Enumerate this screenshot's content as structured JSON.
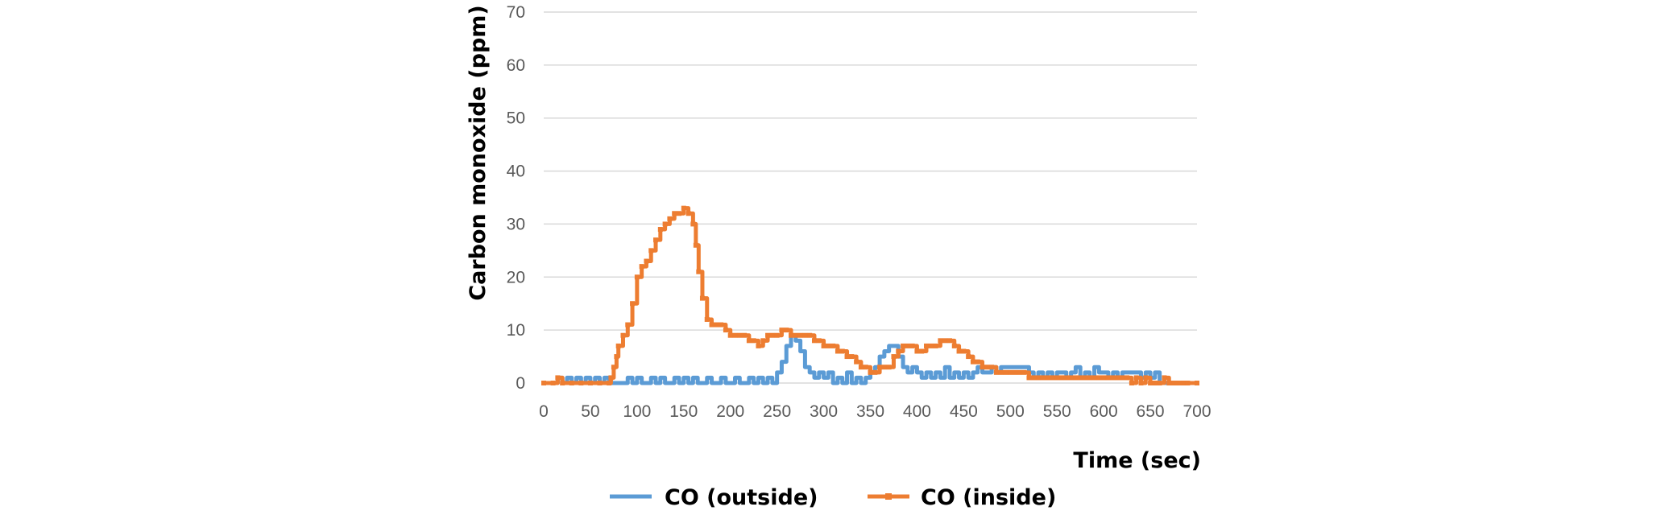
{
  "chart_data": {
    "type": "line",
    "xlabel": "Time (sec)",
    "ylabel": "Carbon monoxide (ppm)",
    "xlim": [
      0,
      700
    ],
    "ylim": [
      0,
      70
    ],
    "xticks": [
      0,
      50,
      100,
      150,
      200,
      250,
      300,
      350,
      400,
      450,
      500,
      550,
      600,
      650,
      700
    ],
    "yticks": [
      0,
      10,
      20,
      30,
      40,
      50,
      60,
      70
    ],
    "grid": "horizontal",
    "legend_position": "bottom",
    "series": [
      {
        "name": "CO (outside)",
        "color": "#5b9bd5",
        "x": [
          0,
          10,
          15,
          20,
          25,
          30,
          35,
          40,
          45,
          50,
          55,
          60,
          65,
          70,
          75,
          80,
          85,
          90,
          95,
          100,
          105,
          110,
          115,
          120,
          125,
          130,
          135,
          140,
          145,
          150,
          155,
          160,
          165,
          170,
          175,
          180,
          185,
          190,
          195,
          200,
          205,
          210,
          215,
          220,
          225,
          230,
          235,
          240,
          245,
          250,
          255,
          260,
          265,
          270,
          275,
          280,
          285,
          290,
          295,
          300,
          305,
          310,
          315,
          320,
          325,
          330,
          335,
          340,
          345,
          350,
          355,
          360,
          365,
          370,
          375,
          380,
          385,
          390,
          395,
          400,
          405,
          410,
          415,
          420,
          425,
          430,
          435,
          440,
          445,
          450,
          455,
          460,
          465,
          470,
          475,
          480,
          485,
          490,
          495,
          500,
          505,
          510,
          515,
          520,
          525,
          530,
          535,
          540,
          545,
          550,
          555,
          560,
          565,
          570,
          575,
          580,
          585,
          590,
          595,
          600,
          605,
          610,
          615,
          620,
          625,
          630,
          635,
          640,
          645,
          650,
          655,
          660,
          665,
          670,
          680,
          690,
          700
        ],
        "y": [
          0,
          0,
          1,
          0,
          1,
          0,
          1,
          0,
          1,
          0,
          1,
          0,
          1,
          0,
          0,
          0,
          0,
          1,
          0,
          1,
          0,
          0,
          1,
          0,
          1,
          0,
          0,
          1,
          0,
          1,
          0,
          1,
          0,
          0,
          1,
          0,
          0,
          1,
          0,
          0,
          1,
          0,
          0,
          1,
          0,
          1,
          0,
          1,
          0,
          2,
          4,
          7,
          9,
          8,
          6,
          3,
          2,
          1,
          2,
          1,
          2,
          0,
          1,
          0,
          2,
          0,
          1,
          0,
          1,
          2,
          3,
          5,
          6,
          7,
          7,
          5,
          3,
          2,
          3,
          2,
          1,
          2,
          1,
          2,
          1,
          3,
          1,
          2,
          1,
          2,
          1,
          2,
          3,
          2,
          2,
          3,
          2,
          3,
          3,
          3,
          3,
          3,
          3,
          2,
          1,
          2,
          1,
          2,
          1,
          2,
          2,
          1,
          2,
          3,
          1,
          2,
          1,
          3,
          2,
          2,
          1,
          2,
          1,
          2,
          2,
          2,
          2,
          1,
          2,
          1,
          2,
          0,
          0,
          0,
          0,
          0,
          0
        ]
      },
      {
        "name": "CO (inside)",
        "color": "#ed7d31",
        "x": [
          0,
          10,
          15,
          20,
          30,
          40,
          50,
          60,
          70,
          72,
          75,
          78,
          80,
          85,
          90,
          95,
          100,
          105,
          110,
          115,
          120,
          125,
          130,
          135,
          140,
          145,
          150,
          155,
          160,
          163,
          166,
          170,
          175,
          180,
          185,
          190,
          195,
          200,
          205,
          210,
          215,
          220,
          225,
          230,
          235,
          240,
          245,
          250,
          255,
          260,
          265,
          270,
          275,
          280,
          285,
          290,
          295,
          300,
          305,
          310,
          315,
          320,
          325,
          330,
          335,
          340,
          345,
          350,
          355,
          360,
          365,
          370,
          375,
          380,
          385,
          390,
          395,
          400,
          405,
          410,
          415,
          420,
          425,
          430,
          435,
          440,
          445,
          450,
          455,
          460,
          465,
          470,
          475,
          480,
          485,
          490,
          495,
          500,
          505,
          510,
          515,
          520,
          525,
          530,
          535,
          540,
          545,
          550,
          555,
          560,
          565,
          570,
          575,
          580,
          585,
          590,
          595,
          600,
          605,
          610,
          615,
          620,
          625,
          630,
          635,
          640,
          645,
          650,
          655,
          660,
          665,
          670,
          675,
          680,
          685,
          690,
          700
        ],
        "y": [
          0,
          0,
          1,
          0,
          0,
          0,
          0,
          0,
          0,
          1,
          3,
          5,
          7,
          9,
          11,
          15,
          20,
          22,
          23,
          25,
          27,
          29,
          30,
          31,
          32,
          32,
          33,
          32,
          30,
          26,
          21,
          16,
          12,
          11,
          11,
          11,
          10,
          9,
          9,
          9,
          9,
          8,
          8,
          7,
          8,
          9,
          9,
          9,
          10,
          10,
          9,
          9,
          9,
          9,
          9,
          8,
          8,
          7,
          7,
          7,
          6,
          6,
          5,
          5,
          4,
          3,
          3,
          2,
          2,
          3,
          3,
          3,
          5,
          6,
          7,
          7,
          7,
          6,
          6,
          7,
          7,
          7,
          8,
          8,
          8,
          7,
          6,
          6,
          5,
          4,
          4,
          3,
          3,
          3,
          2,
          2,
          2,
          2,
          2,
          2,
          2,
          1,
          1,
          1,
          1,
          1,
          1,
          1,
          1,
          1,
          1,
          1,
          1,
          1,
          1,
          1,
          1,
          1,
          1,
          1,
          1,
          1,
          1,
          0,
          1,
          0,
          1,
          0,
          0,
          0,
          1,
          0,
          0,
          0,
          0,
          0,
          0
        ]
      }
    ]
  }
}
